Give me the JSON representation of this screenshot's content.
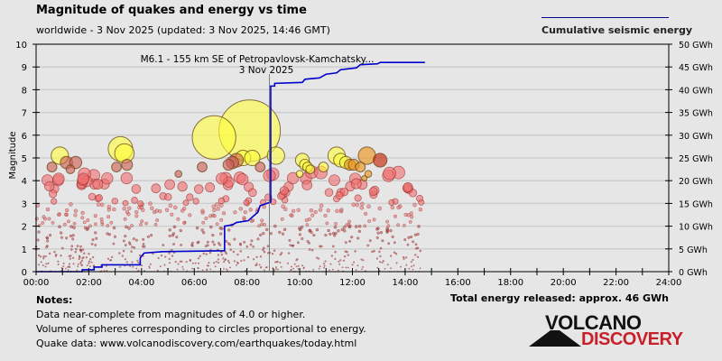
{
  "header": {
    "title": "Magnitude of quakes and energy vs time",
    "subtitle": "worldwide -  3 Nov 2025 (updated: 3 Nov 2025, 14:46 GMT)"
  },
  "legend": {
    "line_label": "Cumulative seismic energy",
    "line_color": "#00008b"
  },
  "notes": {
    "heading": "Notes:",
    "lines": [
      "Data near-complete from magnitudes of 4.0 or higher.",
      "Volume of spheres corresponding to circles proportional to energy.",
      "Quake data: www.volcanodiscovery.com/earthquakes/today.html"
    ]
  },
  "total_energy": "Total energy released: approx. 46 GWh",
  "logo": {
    "line1": "VOLCANO",
    "line2": "DISCOVERY"
  },
  "chart_data": {
    "type": "scatter",
    "title": "Magnitude of quakes and energy vs time",
    "xlabel": "",
    "ylabel": "Magnitude",
    "y2label": "Cumulative seismic energy",
    "xlim_hours": [
      0,
      24
    ],
    "ylim": [
      0,
      10
    ],
    "y2lim": [
      0,
      50
    ],
    "x_ticks": [
      "00:00",
      "02:00",
      "04:00",
      "06:00",
      "08:00",
      "10:00",
      "12:00",
      "14:00",
      "16:00",
      "18:00",
      "20:00",
      "22:00",
      "24:00"
    ],
    "y_ticks": [
      "0",
      "1",
      "2",
      "3",
      "4",
      "5",
      "6",
      "7",
      "8",
      "9",
      "10"
    ],
    "y2_ticks": [
      "0 GWh",
      "5 GWh",
      "10 GWh",
      "15 GWh",
      "20 GWh",
      "25 GWh",
      "30 GWh",
      "35 GWh",
      "40 GWh",
      "45 GWh",
      "50 GWh"
    ],
    "grid": true,
    "legend_position": "top-right",
    "annotation": {
      "text": "M6.1 - 155 km SE of Petropavlovsk-Kamchatsky...",
      "date": "3 Nov 2025",
      "time_h": 8.85,
      "mag": 6.1
    },
    "major_quakes": [
      {
        "t": 0.6,
        "m": 4.6
      },
      {
        "t": 0.9,
        "m": 5.1
      },
      {
        "t": 1.15,
        "m": 4.8
      },
      {
        "t": 1.3,
        "m": 4.5
      },
      {
        "t": 1.5,
        "m": 4.8
      },
      {
        "t": 3.05,
        "m": 4.6
      },
      {
        "t": 3.2,
        "m": 5.4
      },
      {
        "t": 3.35,
        "m": 5.2
      },
      {
        "t": 3.45,
        "m": 4.7
      },
      {
        "t": 5.4,
        "m": 4.3
      },
      {
        "t": 6.3,
        "m": 4.6
      },
      {
        "t": 6.75,
        "m": 5.9
      },
      {
        "t": 7.3,
        "m": 4.7
      },
      {
        "t": 7.45,
        "m": 4.8
      },
      {
        "t": 7.6,
        "m": 4.9
      },
      {
        "t": 7.85,
        "m": 5.0
      },
      {
        "t": 8.1,
        "m": 6.2
      },
      {
        "t": 8.2,
        "m": 5.0
      },
      {
        "t": 8.5,
        "m": 4.6
      },
      {
        "t": 9.1,
        "m": 5.1
      },
      {
        "t": 10.1,
        "m": 4.9
      },
      {
        "t": 10.2,
        "m": 4.7
      },
      {
        "t": 10.3,
        "m": 4.6
      },
      {
        "t": 10.4,
        "m": 4.5
      },
      {
        "t": 10.0,
        "m": 4.3
      },
      {
        "t": 10.9,
        "m": 4.6
      },
      {
        "t": 11.4,
        "m": 5.1
      },
      {
        "t": 11.55,
        "m": 4.9
      },
      {
        "t": 11.75,
        "m": 4.8
      },
      {
        "t": 11.9,
        "m": 4.7
      },
      {
        "t": 12.05,
        "m": 4.7
      },
      {
        "t": 12.3,
        "m": 4.6
      },
      {
        "t": 12.55,
        "m": 5.1
      },
      {
        "t": 12.6,
        "m": 4.3
      },
      {
        "t": 13.05,
        "m": 4.9
      },
      {
        "t": 12.45,
        "m": 4.1
      }
    ],
    "cumulative_energy_gwh": [
      {
        "t": 0.0,
        "e": 0.0
      },
      {
        "t": 1.75,
        "e": 0.0
      },
      {
        "t": 1.75,
        "e": 0.4
      },
      {
        "t": 2.2,
        "e": 0.4
      },
      {
        "t": 2.2,
        "e": 1.0
      },
      {
        "t": 2.5,
        "e": 1.0
      },
      {
        "t": 2.5,
        "e": 1.5
      },
      {
        "t": 3.95,
        "e": 1.5
      },
      {
        "t": 3.95,
        "e": 3.0
      },
      {
        "t": 4.0,
        "e": 3.4
      },
      {
        "t": 4.1,
        "e": 4.1
      },
      {
        "t": 4.8,
        "e": 4.4
      },
      {
        "t": 7.15,
        "e": 4.6
      },
      {
        "t": 7.15,
        "e": 10.0
      },
      {
        "t": 7.45,
        "e": 10.3
      },
      {
        "t": 7.6,
        "e": 10.8
      },
      {
        "t": 8.05,
        "e": 11.2
      },
      {
        "t": 8.2,
        "e": 12.0
      },
      {
        "t": 8.4,
        "e": 13.0
      },
      {
        "t": 8.5,
        "e": 14.5
      },
      {
        "t": 8.9,
        "e": 15.3
      },
      {
        "t": 8.9,
        "e": 40.8
      },
      {
        "t": 9.05,
        "e": 40.8
      },
      {
        "t": 9.05,
        "e": 41.4
      },
      {
        "t": 10.1,
        "e": 41.6
      },
      {
        "t": 10.2,
        "e": 42.3
      },
      {
        "t": 10.75,
        "e": 42.6
      },
      {
        "t": 11.0,
        "e": 43.4
      },
      {
        "t": 11.4,
        "e": 43.7
      },
      {
        "t": 11.55,
        "e": 44.4
      },
      {
        "t": 12.15,
        "e": 44.8
      },
      {
        "t": 12.3,
        "e": 45.5
      },
      {
        "t": 12.95,
        "e": 45.7
      },
      {
        "t": 13.05,
        "e": 46.0
      },
      {
        "t": 14.75,
        "e": 46.0
      }
    ]
  }
}
